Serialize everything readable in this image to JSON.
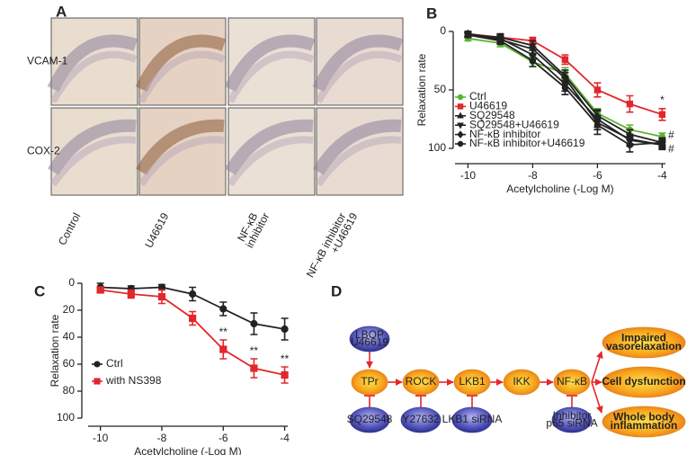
{
  "panel_a": {
    "label": "A",
    "row_labels": [
      "VCAM-1",
      "COX-2"
    ],
    "column_labels": [
      [
        "Control"
      ],
      [
        "U46619"
      ],
      [
        "NF-κB",
        "inhibitor"
      ],
      [
        "NF-κB inhibitor",
        "+U46619"
      ]
    ]
  },
  "chart_data": [
    {
      "type": "line",
      "panel_label": "B",
      "x_label": "Acetylcholine (-Log M)",
      "y_label": "Relaxation rate",
      "x": [
        -10,
        -9,
        -8,
        -7,
        -6,
        -5,
        -4
      ],
      "xlim": [
        -10.4,
        -3.9
      ],
      "xticks": [
        -10,
        -8,
        -6,
        -4
      ],
      "ylim": [
        0,
        100
      ],
      "yticks": [
        0,
        50,
        100
      ],
      "y_inverted": true,
      "series": [
        {
          "name": "Ctrl",
          "color": "#5cb531",
          "marker": "circle",
          "values": [
            6,
            10,
            26,
            36,
            70,
            84,
            90
          ],
          "errors": [
            2,
            3,
            4,
            5,
            4,
            4,
            3
          ]
        },
        {
          "name": "U46619",
          "color": "#e3272b",
          "marker": "square",
          "values": [
            2,
            5,
            8,
            24,
            50,
            62,
            71
          ],
          "errors": [
            2,
            2,
            3,
            4,
            6,
            7,
            5
          ]
        },
        {
          "name": "SQ29548",
          "color": "#222222",
          "marker": "triangle",
          "values": [
            3,
            5,
            12,
            38,
            72,
            88,
            95
          ],
          "errors": [
            2,
            3,
            4,
            5,
            5,
            4,
            3
          ]
        },
        {
          "name": "SQ29548+U46619",
          "color": "#222222",
          "marker": "triangle-down",
          "values": [
            3,
            7,
            15,
            40,
            78,
            92,
            97
          ],
          "errors": [
            2,
            3,
            4,
            5,
            6,
            4,
            3
          ]
        },
        {
          "name": "NF-κB inhibitor",
          "color": "#222222",
          "marker": "diamond",
          "values": [
            2,
            6,
            20,
            45,
            75,
            93,
            97
          ],
          "errors": [
            2,
            3,
            4,
            6,
            7,
            5,
            4
          ]
        },
        {
          "name": "NF-κB inhibitor+U46619",
          "color": "#222222",
          "marker": "circle",
          "values": [
            3,
            8,
            25,
            48,
            80,
            97,
            95
          ],
          "errors": [
            2,
            3,
            5,
            6,
            8,
            6,
            4
          ]
        }
      ],
      "annotations": [
        "*",
        "#",
        "#"
      ]
    },
    {
      "type": "line",
      "panel_label": "C",
      "x_label": "Acetylcholine (-Log M)",
      "y_label": "Relaxation rate",
      "x": [
        -10,
        -9,
        -8,
        -7,
        -6,
        -5,
        -4
      ],
      "xlim": [
        -10.4,
        -3.9
      ],
      "xticks": [
        -10,
        -8,
        -6,
        -4
      ],
      "ylim": [
        0,
        100
      ],
      "yticks": [
        0,
        20,
        40,
        60,
        80,
        100
      ],
      "y_inverted": true,
      "series": [
        {
          "name": "Ctrl",
          "color": "#222222",
          "marker": "circle",
          "values": [
            3,
            4,
            3,
            8,
            19,
            30,
            34
          ],
          "errors": [
            3,
            2,
            2,
            5,
            5,
            8,
            8
          ]
        },
        {
          "name": "with NS398",
          "color": "#e3272b",
          "marker": "square",
          "values": [
            5,
            8,
            10,
            26,
            49,
            63,
            68
          ],
          "errors": [
            2,
            3,
            5,
            5,
            7,
            7,
            6
          ]
        }
      ],
      "annotations": [
        "**",
        "**",
        "**"
      ]
    }
  ],
  "panel_d": {
    "label": "D",
    "nodes": [
      [
        "LBOP",
        "U46619"
      ],
      [
        "TPr"
      ],
      [
        "ROCK"
      ],
      [
        "LKB1"
      ],
      [
        "IKK"
      ],
      [
        "NF-κB"
      ],
      [
        "SQ29548"
      ],
      [
        "Y27632"
      ],
      [
        "LKB1 siRNA"
      ],
      [
        "Inhibitor",
        "p65 siRNA"
      ],
      [
        "Impaired",
        "vasorelaxation"
      ],
      [
        "Cell dysfunction"
      ],
      [
        "Whole body",
        "inflammation"
      ]
    ]
  }
}
